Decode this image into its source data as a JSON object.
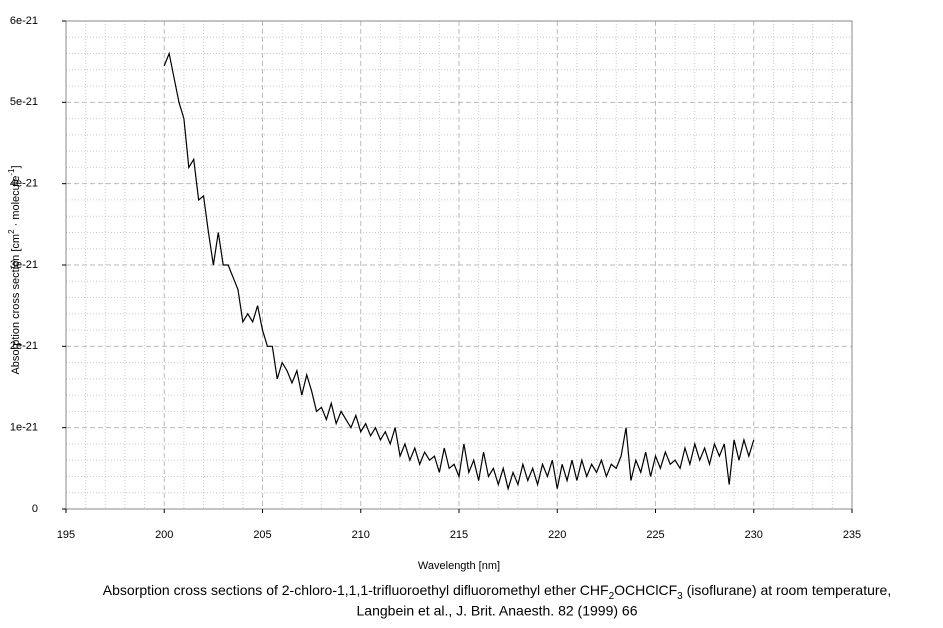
{
  "chart_data": {
    "type": "line",
    "y_label": [
      "Absorption cross section [cm",
      "2",
      " · molecule",
      "-1",
      "]"
    ],
    "x_label": "Wavelength [nm]",
    "caption": [
      [
        "Absorption cross sections of 2-chloro-1,1,1-trifluoroethyl difluoromethyl ether CHF",
        "2",
        "OCHClCF",
        "3",
        " (isoflurane) at room temperature,"
      ],
      "Langbein et al., J. Brit. Anaesth. 82 (1999) 66"
    ],
    "xlim": [
      195,
      235
    ],
    "xticks": [
      195,
      200,
      205,
      210,
      215,
      220,
      225,
      230,
      235
    ],
    "ylim": [
      0,
      6e-21
    ],
    "yticks": [
      0,
      1e-21,
      2e-21,
      3e-21,
      4e-21,
      5e-21,
      6e-21
    ],
    "grid": true,
    "minor_grid_divisions": 5,
    "series": [
      {
        "color": "#000000",
        "x": [
          200,
          200.25,
          200.5,
          200.75,
          201,
          201.25,
          201.5,
          201.75,
          202,
          202.25,
          202.5,
          202.75,
          203,
          203.25,
          203.5,
          203.75,
          204,
          204.25,
          204.5,
          204.75,
          205,
          205.25,
          205.5,
          205.75,
          206,
          206.25,
          206.5,
          206.75,
          207,
          207.25,
          207.5,
          207.75,
          208,
          208.25,
          208.5,
          208.75,
          209,
          209.25,
          209.5,
          209.75,
          210,
          210.25,
          210.5,
          210.75,
          211,
          211.25,
          211.5,
          211.75,
          212,
          212.25,
          212.5,
          212.75,
          213,
          213.25,
          213.5,
          213.75,
          214,
          214.25,
          214.5,
          214.75,
          215,
          215.25,
          215.5,
          215.75,
          216,
          216.25,
          216.5,
          216.75,
          217,
          217.25,
          217.5,
          217.75,
          218,
          218.25,
          218.5,
          218.75,
          219,
          219.25,
          219.5,
          219.75,
          220,
          220.25,
          220.5,
          220.75,
          221,
          221.25,
          221.5,
          221.75,
          222,
          222.25,
          222.5,
          222.75,
          223,
          223.25,
          223.5,
          223.75,
          224,
          224.25,
          224.5,
          224.75,
          225,
          225.25,
          225.5,
          225.75,
          226,
          226.25,
          226.5,
          226.75,
          227,
          227.25,
          227.5,
          227.75,
          228,
          228.25,
          228.5,
          228.75,
          229,
          229.25,
          229.5,
          229.75,
          230
        ],
        "values": [
          5.45e-21,
          5.6e-21,
          5.3e-21,
          5e-21,
          4.8e-21,
          4.2e-21,
          4.3e-21,
          3.8e-21,
          3.85e-21,
          3.4e-21,
          3e-21,
          3.4e-21,
          3e-21,
          3e-21,
          2.85e-21,
          2.7e-21,
          2.3e-21,
          2.4e-21,
          2.3e-21,
          2.5e-21,
          2.2e-21,
          2e-21,
          2e-21,
          1.6e-21,
          1.8e-21,
          1.7e-21,
          1.55e-21,
          1.7e-21,
          1.4e-21,
          1.65e-21,
          1.45e-21,
          1.2e-21,
          1.25e-21,
          1.1e-21,
          1.3e-21,
          1.05e-21,
          1.2e-21,
          1.1e-21,
          1e-21,
          1.15e-21,
          9.5e-22,
          1.05e-21,
          9e-22,
          1e-21,
          8.5e-22,
          9.5e-22,
          8e-22,
          1e-21,
          6.5e-22,
          8e-22,
          6e-22,
          7.5e-22,
          5.5e-22,
          7e-22,
          6e-22,
          6.5e-22,
          4.5e-22,
          7.5e-22,
          5e-22,
          5.5e-22,
          4e-22,
          8e-22,
          4.5e-22,
          6e-22,
          3.5e-22,
          7e-22,
          4e-22,
          5e-22,
          3e-22,
          5e-22,
          2.5e-22,
          4.5e-22,
          3e-22,
          5.5e-22,
          3.5e-22,
          5e-22,
          3e-22,
          5.5e-22,
          4e-22,
          6e-22,
          2.5e-22,
          5.5e-22,
          3.5e-22,
          6e-22,
          3.5e-22,
          6e-22,
          4e-22,
          5.5e-22,
          4.5e-22,
          6e-22,
          4e-22,
          5.5e-22,
          5e-22,
          6.5e-22,
          1e-21,
          3.5e-22,
          6e-22,
          4.5e-22,
          7e-22,
          4e-22,
          6.5e-22,
          5e-22,
          7e-22,
          5.5e-22,
          6e-22,
          5e-22,
          7.5e-22,
          5.5e-22,
          8e-22,
          6e-22,
          7.5e-22,
          5.5e-22,
          8e-22,
          6.5e-22,
          8e-22,
          3e-22,
          8.5e-22,
          6e-22,
          8.5e-22,
          6.5e-22,
          8.5e-22
        ]
      }
    ]
  }
}
